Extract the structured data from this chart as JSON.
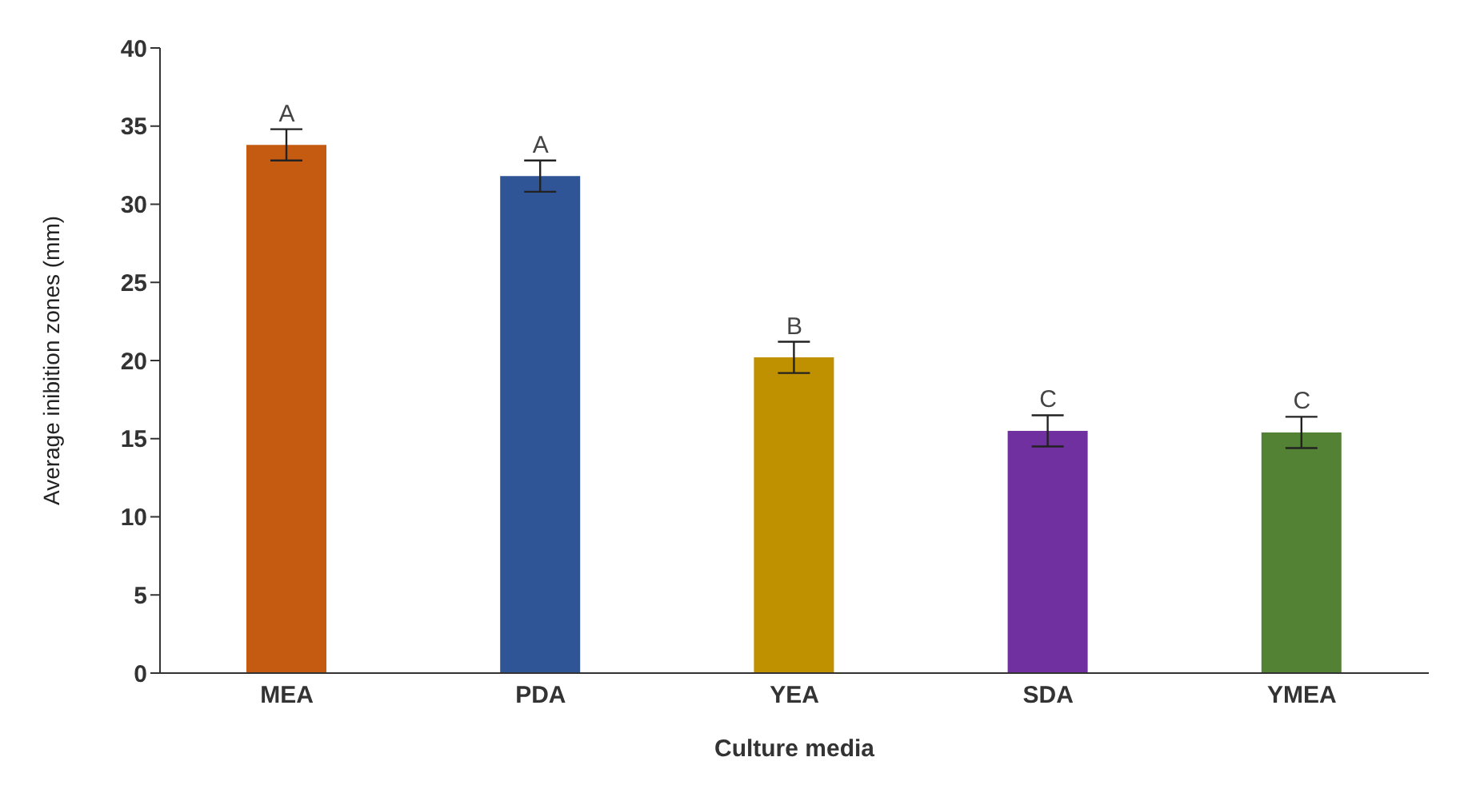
{
  "chart_data": {
    "type": "bar",
    "xlabel": "Culture media",
    "ylabel": "Average inibition zones (mm)",
    "categories": [
      "MEA",
      "PDA",
      "YEA",
      "SDA",
      "YMEA"
    ],
    "values": [
      33.8,
      31.8,
      20.2,
      15.5,
      15.4
    ],
    "errors": [
      1,
      1,
      1,
      1,
      1
    ],
    "colors": [
      "#c55a11",
      "#2f5597",
      "#bf9000",
      "#7030a0",
      "#548235"
    ],
    "ylim": [
      0,
      40
    ],
    "yticks": [
      0,
      5,
      10,
      15,
      20,
      25,
      30,
      35,
      40
    ],
    "grid": false,
    "legend": false,
    "annotations": [
      "A",
      "A",
      "B",
      "C",
      "C"
    ]
  }
}
